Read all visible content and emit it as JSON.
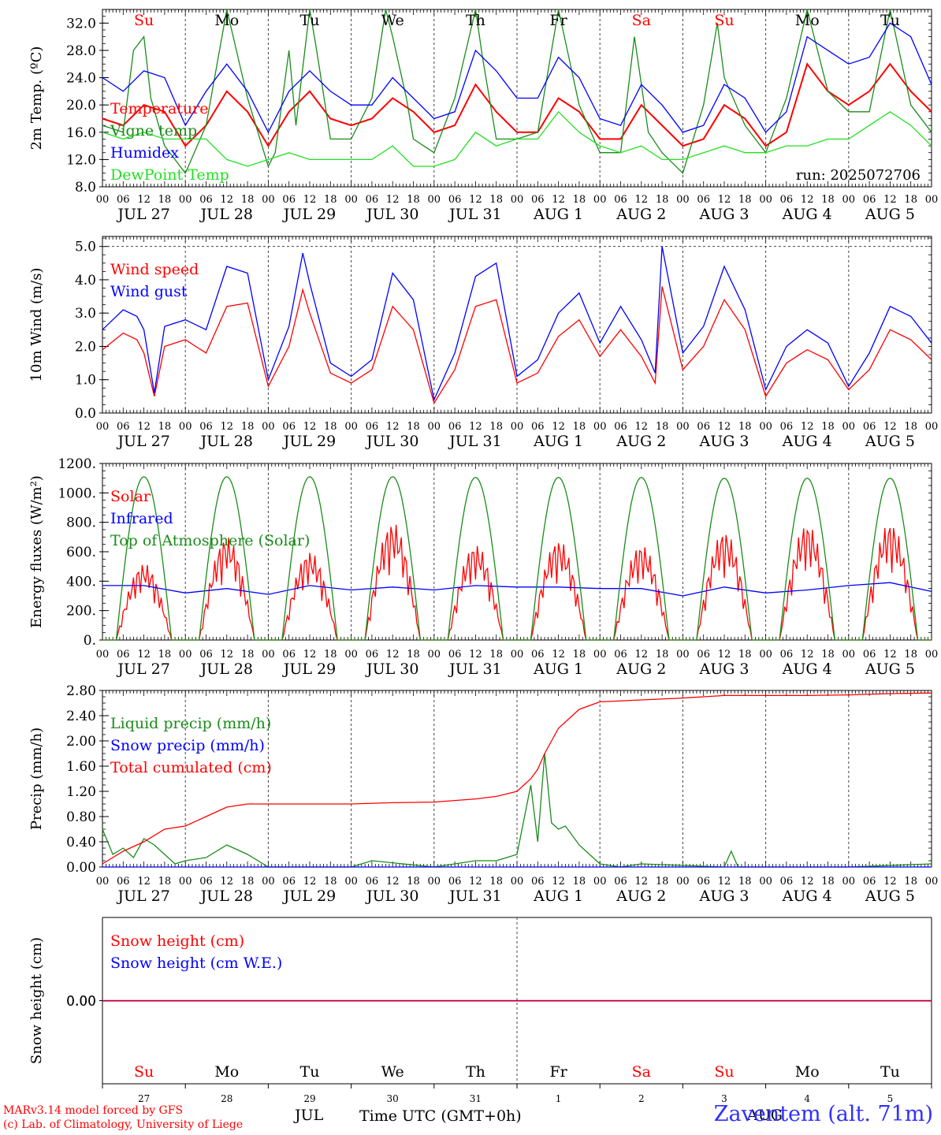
{
  "run_label": "run: 2025072706",
  "days": [
    {
      "dow": "Su",
      "date_label": "JUL 27",
      "day_num": "27",
      "weekend": true
    },
    {
      "dow": "Mo",
      "date_label": "JUL 28",
      "day_num": "28",
      "weekend": false
    },
    {
      "dow": "Tu",
      "date_label": "JUL 29",
      "day_num": "29",
      "weekend": false
    },
    {
      "dow": "We",
      "date_label": "JUL 30",
      "day_num": "30",
      "weekend": false
    },
    {
      "dow": "Th",
      "date_label": "JUL 31",
      "day_num": "31",
      "weekend": false
    },
    {
      "dow": "Fr",
      "date_label": "AUG 1",
      "day_num": "1",
      "weekend": false
    },
    {
      "dow": "Sa",
      "date_label": "AUG 2",
      "day_num": "2",
      "weekend": true
    },
    {
      "dow": "Su",
      "date_label": "AUG 3",
      "day_num": "3",
      "weekend": true
    },
    {
      "dow": "Mo",
      "date_label": "AUG 4",
      "day_num": "4",
      "weekend": false
    },
    {
      "dow": "Tu",
      "date_label": "AUG 5",
      "day_num": "5",
      "weekend": false
    }
  ],
  "hour_ticks": [
    "00",
    "06",
    "12",
    "18"
  ],
  "colors": {
    "red": "#ff0000",
    "blue": "#0000ff",
    "green": "#1a8c1a",
    "light_green": "#22e022",
    "axis": "#000000",
    "dow_weekend": "#ff0000",
    "dow_weekday": "#000000"
  },
  "footer": {
    "model": "MARv3.14 model forced by GFS",
    "credit": "(c) Lab. of Climatology, University of Liege",
    "xlabel": "Time UTC (GMT+0h)",
    "month_left": "JUL",
    "month_right": "AUG",
    "station": "Zaventem (alt. 71m)"
  },
  "chart_data": [
    {
      "type": "line",
      "ylabel": "2m Temp. (ºC)",
      "ylim": [
        8,
        34
      ],
      "yticks": [
        "8.0",
        "12.0",
        "16.0",
        "20.0",
        "24.0",
        "28.0",
        "32.0"
      ],
      "ytick_values": [
        8,
        12,
        16,
        20,
        24,
        28,
        32
      ],
      "x_unit": "hours since JUL 27 00 UTC",
      "legend_position": "top-left",
      "series": [
        {
          "name": "Temperature",
          "color": "#ff0000",
          "x": [
            0,
            6,
            12,
            18,
            24,
            30,
            36,
            42,
            48,
            54,
            60,
            66,
            72,
            78,
            84,
            90,
            96,
            102,
            108,
            114,
            120,
            126,
            132,
            138,
            144,
            150,
            156,
            162,
            168,
            174,
            180,
            186,
            192,
            198,
            204,
            210,
            216,
            222,
            228,
            234,
            240
          ],
          "y": [
            18,
            17,
            20,
            19,
            14,
            17,
            22,
            19,
            14,
            19,
            22,
            18,
            17,
            18,
            21,
            19,
            16,
            17,
            23,
            19,
            16,
            16,
            21,
            19,
            15,
            15,
            20,
            17,
            14,
            15,
            20,
            18,
            14,
            16,
            26,
            22,
            20,
            22,
            26,
            22,
            19
          ]
        },
        {
          "name": "Vigne temp",
          "color": "#1a8c1a",
          "x": [
            0,
            6,
            9,
            12,
            14,
            18,
            24,
            30,
            36,
            42,
            48,
            50,
            54,
            56,
            60,
            62,
            66,
            72,
            78,
            82,
            84,
            88,
            90,
            96,
            102,
            108,
            110,
            114,
            120,
            126,
            132,
            138,
            144,
            150,
            154,
            158,
            162,
            168,
            174,
            178,
            180,
            186,
            192,
            198,
            204,
            210,
            216,
            222,
            228,
            234,
            240
          ],
          "y": [
            17,
            16,
            28,
            30,
            21,
            14,
            10,
            17,
            34,
            21,
            11,
            13,
            28,
            17,
            34,
            28,
            15,
            15,
            21,
            34,
            30,
            21,
            15,
            13,
            21,
            34,
            27,
            15,
            15,
            16,
            34,
            20,
            13,
            13,
            30,
            16,
            13,
            10,
            20,
            32,
            24,
            17,
            13,
            21,
            34,
            22,
            19,
            19,
            34,
            20,
            16
          ]
        },
        {
          "name": "Humidex",
          "color": "#0000ff",
          "x": [
            0,
            6,
            12,
            18,
            24,
            30,
            36,
            42,
            48,
            54,
            60,
            66,
            72,
            78,
            84,
            90,
            96,
            102,
            108,
            114,
            120,
            126,
            132,
            138,
            144,
            150,
            156,
            162,
            168,
            174,
            180,
            186,
            192,
            198,
            204,
            210,
            216,
            222,
            228,
            234,
            240
          ],
          "y": [
            24,
            22,
            25,
            24,
            17,
            22,
            26,
            22,
            16,
            22,
            25,
            22,
            20,
            20,
            24,
            21,
            18,
            19,
            28,
            25,
            21,
            21,
            27,
            24,
            18,
            17,
            23,
            20,
            16,
            17,
            23,
            21,
            16,
            19,
            30,
            28,
            26,
            27,
            32,
            30,
            23
          ]
        },
        {
          "name": "DewPoint Temp",
          "color": "#22e022",
          "x": [
            0,
            6,
            12,
            18,
            24,
            30,
            36,
            42,
            48,
            54,
            60,
            66,
            72,
            78,
            84,
            90,
            96,
            102,
            108,
            114,
            120,
            126,
            132,
            138,
            144,
            150,
            156,
            162,
            168,
            174,
            180,
            186,
            192,
            198,
            204,
            210,
            216,
            222,
            228,
            234,
            240
          ],
          "y": [
            16,
            15,
            16,
            15,
            15,
            15,
            12,
            11,
            12,
            13,
            12,
            12,
            12,
            12,
            14,
            11,
            11,
            12,
            16,
            14,
            15,
            15,
            19,
            16,
            14,
            13,
            14,
            12,
            12,
            13,
            14,
            13,
            13,
            14,
            14,
            15,
            15,
            17,
            19,
            17,
            14
          ]
        }
      ]
    },
    {
      "type": "line",
      "ylabel": "10m Wind (m/s)",
      "ylim": [
        0,
        5.3
      ],
      "yticks": [
        "0.0",
        "1.0",
        "2.0",
        "3.0",
        "4.0",
        "5.0"
      ],
      "ytick_values": [
        0,
        1,
        2,
        3,
        4,
        5
      ],
      "dashed_reference": 5.0,
      "x_unit": "hours since JUL 27 00 UTC",
      "legend_position": "top-left",
      "series": [
        {
          "name": "Wind speed",
          "color": "#ff0000",
          "x": [
            0,
            6,
            10,
            12,
            15,
            18,
            24,
            30,
            36,
            42,
            48,
            54,
            58,
            60,
            66,
            72,
            78,
            84,
            90,
            96,
            102,
            108,
            114,
            120,
            126,
            132,
            138,
            144,
            150,
            156,
            160,
            162,
            168,
            174,
            180,
            186,
            192,
            198,
            204,
            210,
            216,
            222,
            228,
            234,
            240
          ],
          "y": [
            1.9,
            2.4,
            2.2,
            1.8,
            0.5,
            2.0,
            2.2,
            1.8,
            3.2,
            3.3,
            0.8,
            2.0,
            3.7,
            3.0,
            1.2,
            0.9,
            1.3,
            3.2,
            2.5,
            0.3,
            1.3,
            3.2,
            3.4,
            0.9,
            1.2,
            2.3,
            2.8,
            1.7,
            2.5,
            1.7,
            0.9,
            3.8,
            1.3,
            2.0,
            3.4,
            2.5,
            0.5,
            1.5,
            1.9,
            1.6,
            0.7,
            1.3,
            2.5,
            2.2,
            1.6
          ]
        },
        {
          "name": "Wind gust",
          "color": "#0000ff",
          "x": [
            0,
            6,
            10,
            12,
            15,
            18,
            24,
            30,
            36,
            42,
            48,
            54,
            58,
            60,
            66,
            72,
            78,
            84,
            90,
            96,
            102,
            108,
            114,
            120,
            126,
            132,
            138,
            144,
            150,
            156,
            160,
            162,
            168,
            174,
            180,
            186,
            192,
            198,
            204,
            210,
            216,
            222,
            228,
            234,
            240
          ],
          "y": [
            2.5,
            3.1,
            2.9,
            2.5,
            0.6,
            2.6,
            2.8,
            2.5,
            4.4,
            4.2,
            1.0,
            2.6,
            4.8,
            3.9,
            1.5,
            1.1,
            1.6,
            4.2,
            3.4,
            0.4,
            1.8,
            4.1,
            4.5,
            1.1,
            1.6,
            3.0,
            3.6,
            2.1,
            3.2,
            2.2,
            1.2,
            5.0,
            1.8,
            2.6,
            4.4,
            3.1,
            0.7,
            2.0,
            2.5,
            2.1,
            0.8,
            1.8,
            3.2,
            2.9,
            2.1
          ]
        }
      ]
    },
    {
      "type": "line",
      "ylabel": "Energy fluxes (W/m²)",
      "ylim": [
        0,
        1200
      ],
      "yticks": [
        "0.",
        "200.",
        "400.",
        "600.",
        "800.",
        "1000.",
        "1200."
      ],
      "ytick_values": [
        0,
        200,
        400,
        600,
        800,
        1000,
        1200
      ],
      "x_unit": "hours since JUL 27 00 UTC",
      "legend_position": "top-left",
      "series": [
        {
          "name": "Solar",
          "daily_peak": [
            520,
            700,
            600,
            800,
            650,
            680,
            650,
            740,
            790,
            800
          ],
          "color": "#ff0000"
        },
        {
          "name": "Infrared",
          "x": [
            0,
            12,
            24,
            36,
            48,
            60,
            72,
            84,
            96,
            108,
            120,
            132,
            144,
            156,
            168,
            180,
            192,
            204,
            216,
            228,
            240
          ],
          "y": [
            370,
            370,
            320,
            350,
            310,
            370,
            340,
            360,
            340,
            370,
            360,
            360,
            350,
            350,
            300,
            360,
            320,
            340,
            370,
            390,
            330
          ],
          "color": "#0000ff"
        },
        {
          "name": "Top of Atmosphere (Solar)",
          "daily_peak": [
            1110,
            1110,
            1110,
            1110,
            1105,
            1105,
            1105,
            1100,
            1100,
            1100
          ],
          "color": "#1a8c1a"
        }
      ]
    },
    {
      "type": "line",
      "ylabel": "Precip (mm/h)",
      "ylim": [
        0,
        2.8
      ],
      "yticks": [
        "0.00",
        "0.40",
        "0.80",
        "1.20",
        "1.60",
        "2.00",
        "2.40",
        "2.80"
      ],
      "ytick_values": [
        0,
        0.4,
        0.8,
        1.2,
        1.6,
        2.0,
        2.4,
        2.8
      ],
      "x_unit": "hours since JUL 27 00 UTC",
      "legend_position": "top-left",
      "series": [
        {
          "name": "Liquid precip (mm/h)",
          "color": "#1a8c1a",
          "x": [
            0,
            3,
            6,
            9,
            12,
            15,
            18,
            21,
            24,
            30,
            36,
            42,
            48,
            72,
            78,
            96,
            108,
            114,
            120,
            124,
            126,
            128,
            130,
            132,
            134,
            138,
            144,
            150,
            156,
            180,
            182,
            184,
            192,
            216,
            240
          ],
          "y": [
            0.6,
            0.2,
            0.3,
            0.15,
            0.45,
            0.35,
            0.2,
            0.05,
            0.1,
            0.15,
            0.35,
            0.2,
            0.0,
            0.0,
            0.1,
            0.0,
            0.1,
            0.1,
            0.2,
            1.3,
            0.4,
            1.8,
            0.7,
            0.6,
            0.65,
            0.35,
            0.05,
            0.0,
            0.05,
            0.0,
            0.25,
            0.0,
            0.0,
            0.0,
            0.05
          ]
        },
        {
          "name": "Snow precip (mm/h)",
          "color": "#0000ff",
          "x": [
            0,
            240
          ],
          "y": [
            0.0,
            0.0
          ]
        },
        {
          "name": "Total cumulated (cm)",
          "color": "#ff0000",
          "x": [
            0,
            6,
            12,
            18,
            24,
            30,
            36,
            42,
            48,
            60,
            72,
            84,
            96,
            108,
            114,
            120,
            124,
            126,
            128,
            132,
            138,
            144,
            156,
            168,
            180,
            192,
            204,
            216,
            228,
            240
          ],
          "y": [
            0.05,
            0.25,
            0.4,
            0.6,
            0.65,
            0.8,
            0.95,
            1.0,
            1.0,
            1.0,
            1.0,
            1.02,
            1.03,
            1.08,
            1.12,
            1.2,
            1.4,
            1.55,
            1.8,
            2.2,
            2.5,
            2.62,
            2.65,
            2.68,
            2.72,
            2.72,
            2.72,
            2.73,
            2.75,
            2.76
          ]
        }
      ]
    },
    {
      "type": "line",
      "ylabel": "Snow height (cm)",
      "yticks": [
        "0.00"
      ],
      "ytick_values": [
        0
      ],
      "x_unit": "hours since JUL 27 00 UTC",
      "legend_position": "top-left",
      "series": [
        {
          "name": "Snow height (cm)",
          "color": "#ff0000",
          "x": [
            0,
            240
          ],
          "y": [
            0,
            0
          ]
        },
        {
          "name": "Snow height (cm W.E.)",
          "color": "#0000ff",
          "x": [
            0,
            240
          ],
          "y": [
            0,
            0
          ]
        }
      ]
    }
  ]
}
